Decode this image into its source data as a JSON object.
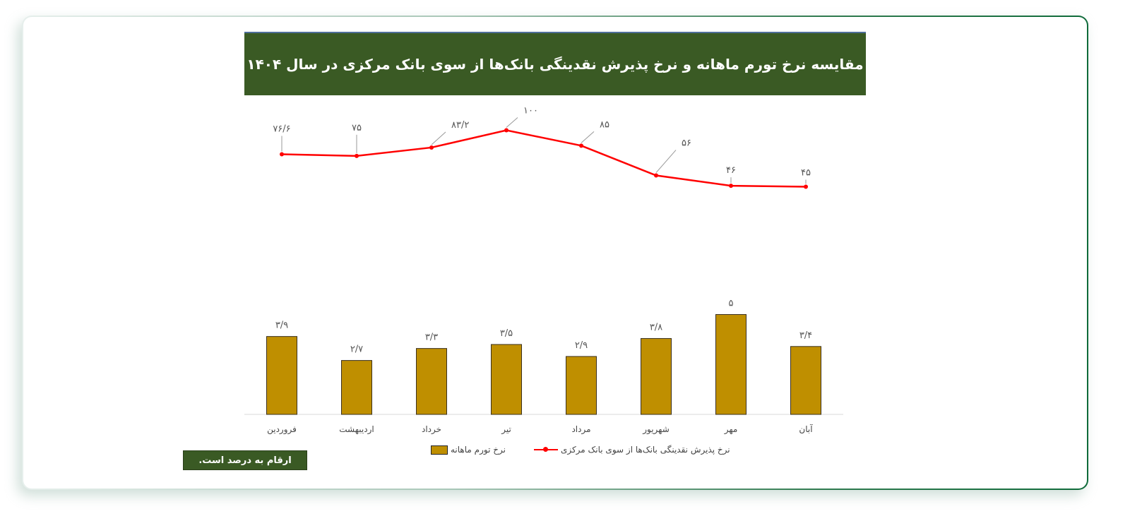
{
  "title": "مقایسه نرخ تورم ماهانه و نرخ پذیرش نقدینگی بانک‌ها از سوی بانک مرکزی در سال ۱۴۰۴",
  "note": "ارقام به درصد است.",
  "legend": {
    "bar_label": "نرخ تورم ماهانه",
    "line_label": "نرخ پذیرش نقدینگی بانک‌ها از سوی بانک مرکزی"
  },
  "colors": {
    "header_bg": "#3a5a24",
    "bar": "#bf8f00",
    "line": "#ff0000",
    "border_accent": "#0f6b3a"
  },
  "chart_data": {
    "type": "bar+line",
    "title": "مقایسه نرخ تورم ماهانه و نرخ پذیرش نقدینگی بانک‌ها از سوی بانک مرکزی در سال ۱۴۰۴",
    "categories": [
      "فروردین",
      "اردیبهشت",
      "خرداد",
      "تیر",
      "مرداد",
      "شهریور",
      "مهر",
      "آبان"
    ],
    "series": [
      {
        "name": "نرخ پذیرش نقدینگی بانک‌ها از سوی بانک مرکزی",
        "type": "line",
        "values": [
          76.6,
          75,
          83.2,
          100,
          85,
          56,
          46,
          45
        ],
        "labels": [
          "۷۶/۶",
          "۷۵",
          "۸۳/۲",
          "۱۰۰",
          "۸۵",
          "۵۶",
          "۴۶",
          "۴۵"
        ]
      },
      {
        "name": "نرخ تورم ماهانه",
        "type": "bar",
        "values": [
          3.9,
          2.7,
          3.3,
          3.5,
          2.9,
          3.8,
          5,
          3.4
        ],
        "labels": [
          "۳/۹",
          "۲/۷",
          "۳/۳",
          "۳/۵",
          "۲/۹",
          "۳/۸",
          "۵",
          "۳/۴"
        ]
      }
    ],
    "xlabel": "",
    "ylabel": "",
    "grid": false,
    "legend_position": "bottom",
    "units": "percent"
  }
}
